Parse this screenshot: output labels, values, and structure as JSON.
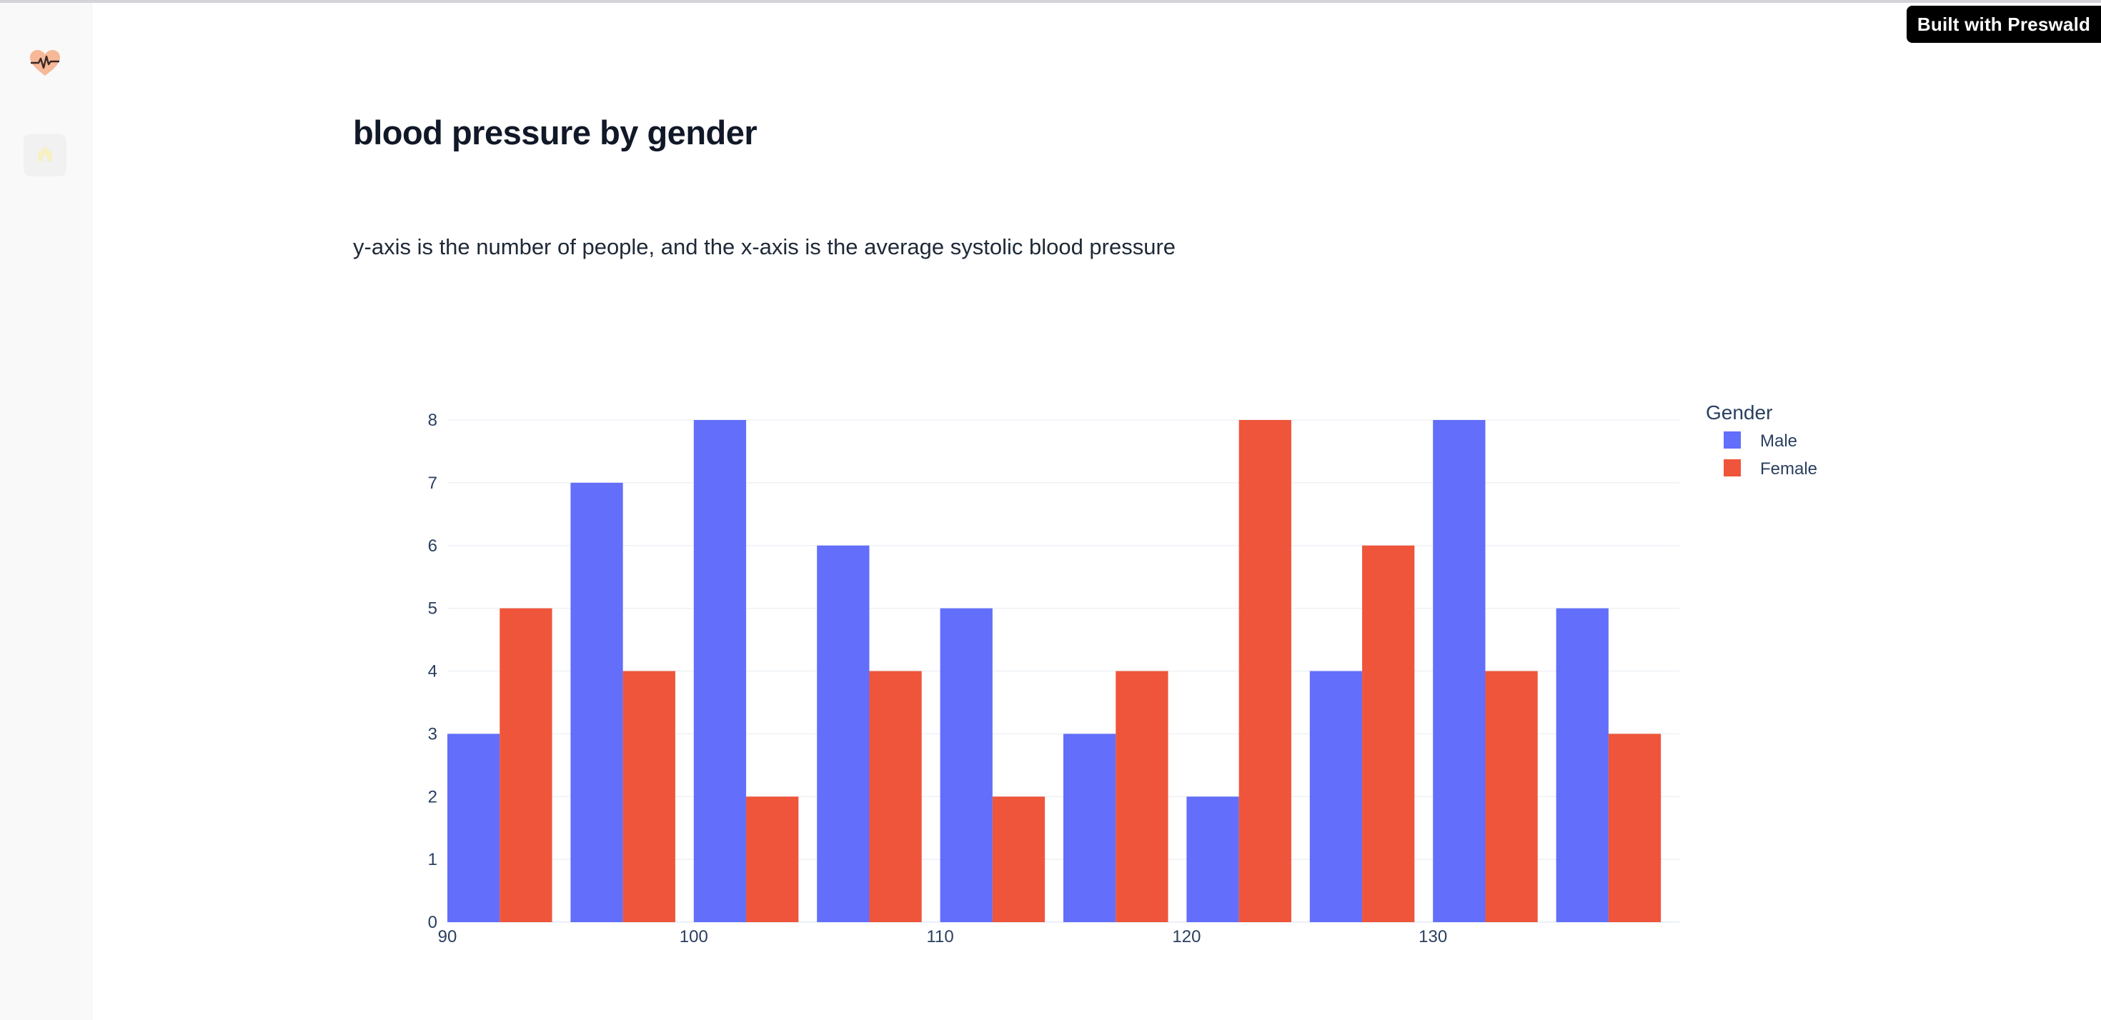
{
  "badge": {
    "label": "Built with Preswald"
  },
  "sidebar": {
    "logo_icon": "heart-pulse-icon",
    "home_icon": "home-icon"
  },
  "page": {
    "title": "blood pressure by gender",
    "description": "y-axis is the number of people, and the x-axis is the average systolic blood pressure"
  },
  "chart_data": {
    "type": "bar",
    "barmode": "group",
    "x_bins": [
      90,
      95,
      100,
      105,
      110,
      115,
      120,
      125,
      130,
      135
    ],
    "bin_width": 5,
    "x_ticks": [
      "90",
      "100",
      "110",
      "120",
      "130"
    ],
    "x_tick_values": [
      90,
      100,
      110,
      120,
      130
    ],
    "y_ticks": [
      "0",
      "1",
      "2",
      "3",
      "4",
      "5",
      "6",
      "7",
      "8"
    ],
    "ylim": [
      0,
      8
    ],
    "xlim": [
      90,
      140
    ],
    "legend_title": "Gender",
    "legend_position": "top-right",
    "grid": true,
    "series": [
      {
        "name": "Male",
        "color": "#636efa",
        "values": [
          3,
          7,
          8,
          6,
          5,
          3,
          2,
          4,
          8,
          5
        ]
      },
      {
        "name": "Female",
        "color": "#ef553b",
        "values": [
          5,
          4,
          2,
          4,
          2,
          4,
          8,
          6,
          4,
          3
        ]
      }
    ]
  }
}
